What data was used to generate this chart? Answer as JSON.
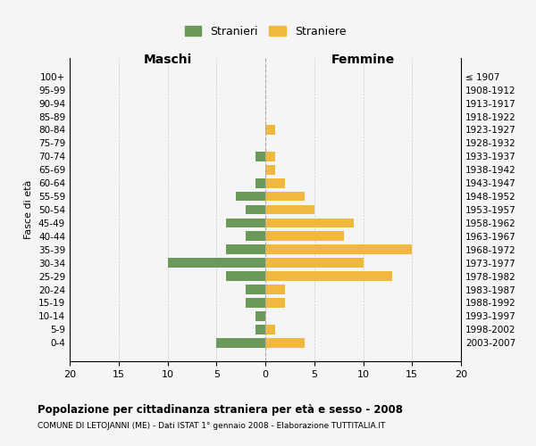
{
  "age_groups": [
    "100+",
    "95-99",
    "90-94",
    "85-89",
    "80-84",
    "75-79",
    "70-74",
    "65-69",
    "60-64",
    "55-59",
    "50-54",
    "45-49",
    "40-44",
    "35-39",
    "30-34",
    "25-29",
    "20-24",
    "15-19",
    "10-14",
    "5-9",
    "0-4"
  ],
  "birth_years": [
    "≤ 1907",
    "1908-1912",
    "1913-1917",
    "1918-1922",
    "1923-1927",
    "1928-1932",
    "1933-1937",
    "1938-1942",
    "1943-1947",
    "1948-1952",
    "1953-1957",
    "1958-1962",
    "1963-1967",
    "1968-1972",
    "1973-1977",
    "1978-1982",
    "1983-1987",
    "1988-1992",
    "1993-1997",
    "1998-2002",
    "2003-2007"
  ],
  "maschi": [
    0,
    0,
    0,
    0,
    0,
    0,
    1,
    0,
    1,
    3,
    2,
    4,
    2,
    4,
    10,
    4,
    2,
    2,
    1,
    1,
    5
  ],
  "femmine": [
    0,
    0,
    0,
    0,
    1,
    0,
    1,
    1,
    2,
    4,
    5,
    9,
    8,
    15,
    10,
    13,
    2,
    2,
    0,
    1,
    4
  ],
  "color_maschi": "#6a9a5a",
  "color_femmine": "#f0b840",
  "title": "Popolazione per cittadinanza straniera per età e sesso - 2008",
  "subtitle": "COMUNE DI LETOJANNI (ME) - Dati ISTAT 1° gennaio 2008 - Elaborazione TUTTITALIA.IT",
  "xlabel_maschi": "Maschi",
  "xlabel_femmine": "Femmine",
  "ylabel_left": "Fasce di età",
  "legend_maschi": "Stranieri",
  "legend_femmine": "Straniere",
  "xlim": 20,
  "bg_color": "#f5f5f5",
  "grid_color": "#cccccc"
}
